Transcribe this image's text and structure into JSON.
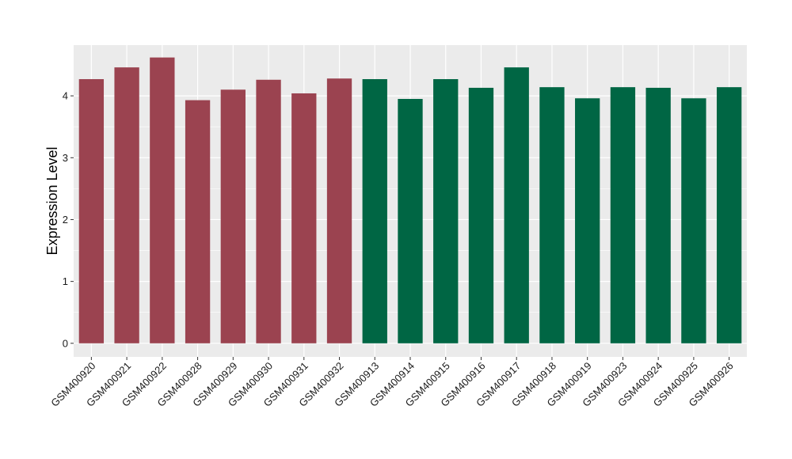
{
  "chart_data": {
    "type": "bar",
    "title": "",
    "xlabel": "",
    "ylabel": "Expression Level",
    "ylim": [
      -0.22,
      4.82
    ],
    "yticks": [
      0,
      1,
      2,
      3,
      4
    ],
    "grid": true,
    "categories": [
      "GSM400920",
      "GSM400921",
      "GSM400922",
      "GSM400928",
      "GSM400929",
      "GSM400930",
      "GSM400931",
      "GSM400932",
      "GSM400913",
      "GSM400914",
      "GSM400915",
      "GSM400916",
      "GSM400917",
      "GSM400918",
      "GSM400919",
      "GSM400923",
      "GSM400924",
      "GSM400925",
      "GSM400926"
    ],
    "values": [
      4.27,
      4.46,
      4.62,
      3.93,
      4.1,
      4.26,
      4.04,
      4.28,
      4.27,
      3.95,
      4.27,
      4.13,
      4.46,
      4.14,
      3.96,
      4.14,
      4.13,
      3.96,
      4.14
    ],
    "groups": [
      "group1",
      "group1",
      "group1",
      "group1",
      "group1",
      "group1",
      "group1",
      "group1",
      "group2",
      "group2",
      "group2",
      "group2",
      "group2",
      "group2",
      "group2",
      "group2",
      "group2",
      "group2",
      "group2"
    ],
    "colors": {
      "group1": "#9b4350",
      "group2": "#006644",
      "panel_background": "#ebebeb",
      "gridline": "#ffffff"
    }
  }
}
